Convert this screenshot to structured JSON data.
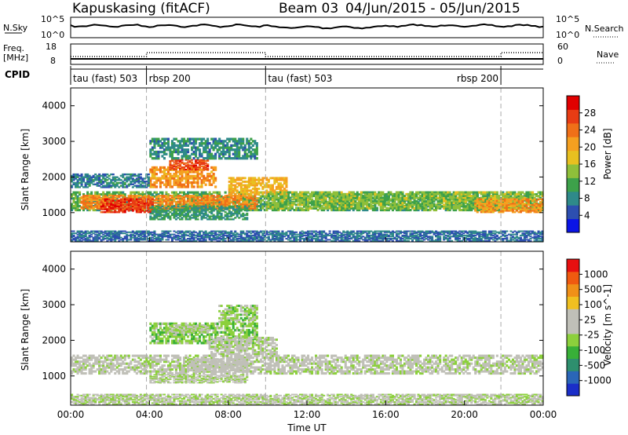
{
  "header": {
    "station": "Kapuskasing (fitACF)",
    "beam": "Beam 03",
    "date_range": "04/Jun/2015 - 05/Jun/2015"
  },
  "panels": {
    "nsky": {
      "label": "N.Sky",
      "ticks_left": [
        "10^5",
        "10^0"
      ],
      "ticks_right": [
        "10^5",
        "10^0"
      ],
      "right_label": "N.Search"
    },
    "freq": {
      "label_top": "Freq.",
      "label_unit": "[MHz]",
      "ticks_left": [
        "18",
        "8"
      ],
      "ticks_right": [
        "60",
        "0"
      ],
      "right_label": "Nave"
    },
    "cpid": {
      "label": "CPID",
      "segments": [
        {
          "start_h": 0,
          "end_h": 3.85,
          "label": "tau (fast) 503"
        },
        {
          "start_h": 3.85,
          "end_h": 9.9,
          "label": "rbsp 200"
        },
        {
          "start_h": 9.9,
          "end_h": 21.85,
          "label": "tau (fast) 503"
        },
        {
          "start_h": 21.85,
          "end_h": 24,
          "label": "rbsp 200"
        }
      ]
    }
  },
  "colorbars": {
    "power": {
      "title": "Power [dB]",
      "ticks": [
        "28",
        "24",
        "20",
        "16",
        "12",
        "8",
        "4"
      ],
      "colors": [
        "#0a14e6",
        "#2d4fb0",
        "#2f8a8a",
        "#3da14a",
        "#8fbf3a",
        "#e8c020",
        "#f5a020",
        "#f07018",
        "#e83c14",
        "#e10000"
      ]
    },
    "velocity": {
      "title": "Velocity [m s^-1]",
      "ticks": [
        "1000",
        "500",
        "100",
        "25",
        "-25",
        "-100",
        "-500",
        "-1000"
      ],
      "colors": [
        "#1a2ec8",
        "#2a66b8",
        "#2e8f6e",
        "#38b038",
        "#8cd03c",
        "#c0c0b8",
        "#c0c0b8",
        "#f0c020",
        "#f09018",
        "#f05a10",
        "#e81010"
      ]
    }
  },
  "chart_data": [
    {
      "type": "heatmap",
      "name": "power",
      "ylabel": "Slant Range [km]",
      "ylim": [
        180,
        4500
      ],
      "yticks": [
        1000,
        2000,
        3000,
        4000
      ],
      "xlim": [
        0,
        24
      ],
      "xticks": [
        "00:00",
        "04:00",
        "08:00",
        "12:00",
        "16:00",
        "20:00",
        "00:00"
      ],
      "colorbar_range": [
        0,
        30
      ],
      "regions": [
        {
          "t0": 0,
          "t1": 24,
          "r0": 1050,
          "r1": 1600,
          "value": 11
        },
        {
          "t0": 0.5,
          "t1": 9.5,
          "r0": 1100,
          "r1": 1500,
          "value": 21
        },
        {
          "t0": 1.5,
          "t1": 4.2,
          "r0": 1000,
          "r1": 1400,
          "value": 26
        },
        {
          "t0": 4,
          "t1": 7.4,
          "r0": 1700,
          "r1": 2300,
          "value": 20
        },
        {
          "t0": 5,
          "t1": 7,
          "r0": 2200,
          "r1": 2500,
          "value": 25
        },
        {
          "t0": 8,
          "t1": 11,
          "r0": 1500,
          "r1": 2000,
          "value": 18
        },
        {
          "t0": 4,
          "t1": 9,
          "r0": 800,
          "r1": 1200,
          "value": 9
        },
        {
          "t0": 0,
          "t1": 4,
          "r0": 1700,
          "r1": 2100,
          "value": 7
        },
        {
          "t0": 4,
          "t1": 9.5,
          "r0": 2500,
          "r1": 3100,
          "value": 8
        },
        {
          "t0": 10,
          "t1": 24,
          "r0": 1100,
          "r1": 1600,
          "value": 13
        },
        {
          "t0": 20.5,
          "t1": 24,
          "r0": 1000,
          "r1": 1400,
          "value": 20
        },
        {
          "t0": 0,
          "t1": 24,
          "r0": 200,
          "r1": 500,
          "value": 6
        }
      ],
      "dashed_lines_h": [
        3.85,
        9.9,
        21.85
      ]
    },
    {
      "type": "heatmap",
      "name": "velocity",
      "ylabel": "Slant Range [km]",
      "ylim": [
        180,
        4500
      ],
      "yticks": [
        1000,
        2000,
        3000,
        4000
      ],
      "xlim": [
        0,
        24
      ],
      "xticks": [
        "00:00",
        "04:00",
        "08:00",
        "12:00",
        "16:00",
        "20:00",
        "00:00"
      ],
      "xlabel": "Time UT",
      "colorbar_range": [
        -1000,
        1000
      ],
      "regions": [
        {
          "t0": 0,
          "t1": 24,
          "r0": 1050,
          "r1": 1600,
          "value": 0
        },
        {
          "t0": 4,
          "t1": 9.5,
          "r0": 1900,
          "r1": 2500,
          "value": -200
        },
        {
          "t0": 5,
          "t1": 7,
          "r0": 2200,
          "r1": 2450,
          "value": -80
        },
        {
          "t0": 4,
          "t1": 9,
          "r0": 800,
          "r1": 1050,
          "value": -60
        },
        {
          "t0": 7,
          "t1": 10.5,
          "r0": 1600,
          "r1": 2100,
          "value": 0
        },
        {
          "t0": 7.5,
          "t1": 9.5,
          "r0": 2500,
          "r1": 3000,
          "value": -150
        },
        {
          "t0": 6,
          "t1": 9,
          "r0": 1100,
          "r1": 1500,
          "value": 80
        },
        {
          "t0": 0,
          "t1": 24,
          "r0": 200,
          "r1": 500,
          "value": -40
        }
      ],
      "dashed_lines_h": [
        3.85,
        9.9,
        21.85
      ]
    }
  ]
}
